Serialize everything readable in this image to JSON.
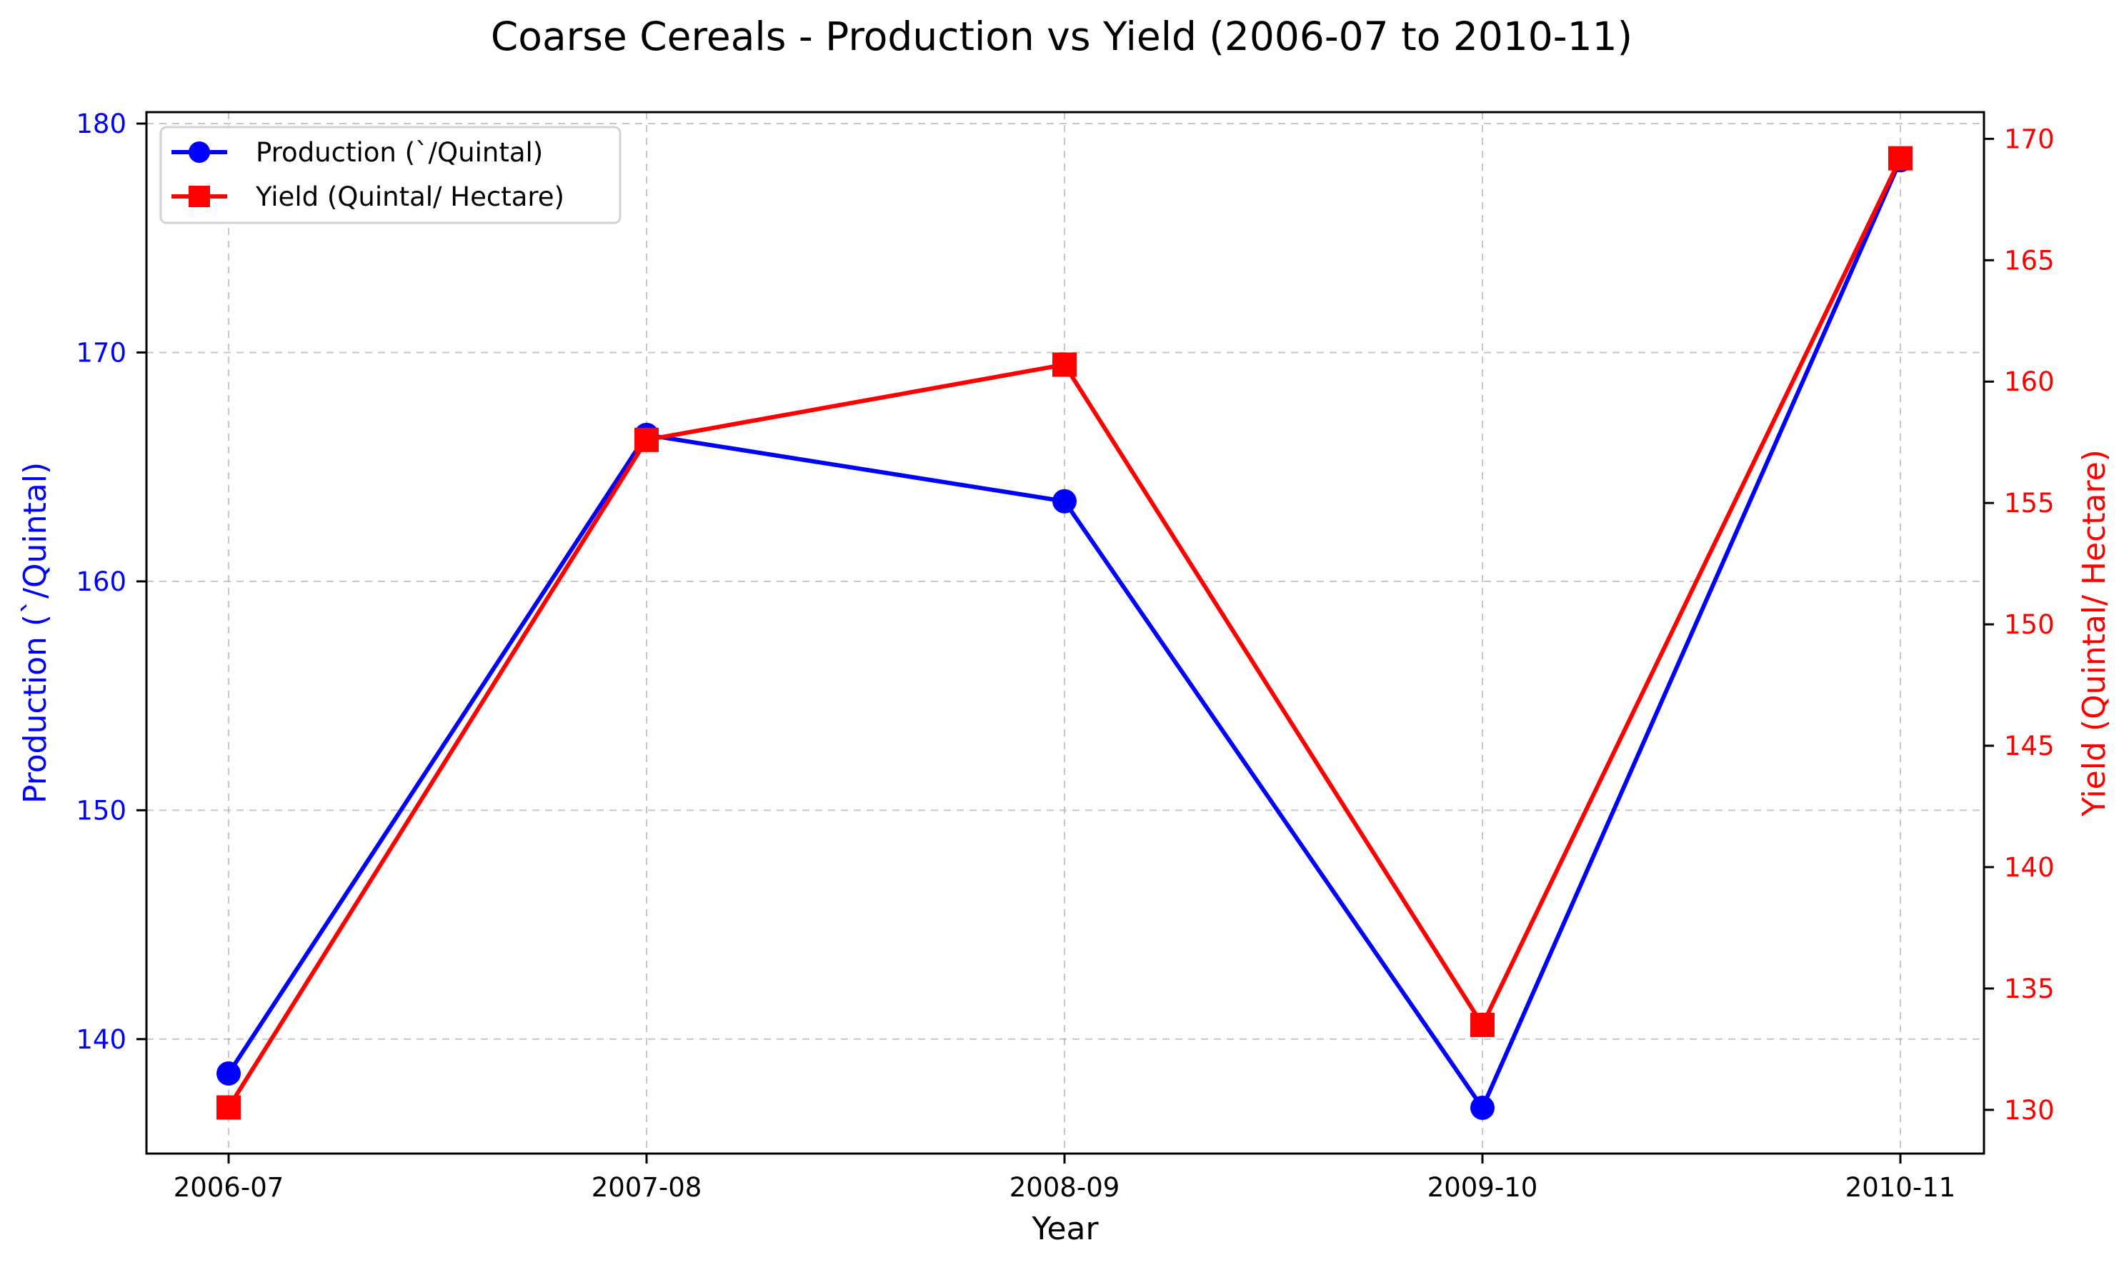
{
  "chart_data": {
    "type": "line",
    "title": "Coarse Cereals - Production vs Yield (2006-07 to 2010-11)",
    "xlabel": "Year",
    "ylabel_left": "Production (`/Quintal)",
    "ylabel_right": "Yield (Quintal/ Hectare)",
    "categories": [
      "2006-07",
      "2007-08",
      "2008-09",
      "2009-10",
      "2010-11"
    ],
    "series": [
      {
        "name": "Production (`/Quintal)",
        "axis": "left",
        "color": "#0000ff",
        "marker": "circle",
        "values": [
          138.5,
          166.4,
          163.5,
          137.0,
          178.4
        ]
      },
      {
        "name": "Yield (Quintal/ Hectare)",
        "axis": "right",
        "color": "#ff0000",
        "marker": "square",
        "values": [
          130.1,
          157.6,
          160.7,
          133.5,
          169.2
        ]
      }
    ],
    "ylim_left": [
      135,
      180.5
    ],
    "ylim_right": [
      128.2,
      171.1
    ],
    "yticks_left": [
      140,
      150,
      160,
      170,
      180
    ],
    "yticks_right": [
      130,
      135,
      140,
      145,
      150,
      155,
      160,
      165,
      170
    ],
    "grid": true,
    "legend": "top-left",
    "colors": {
      "left_axis": "#0000ff",
      "right_axis": "#ff0000"
    }
  }
}
